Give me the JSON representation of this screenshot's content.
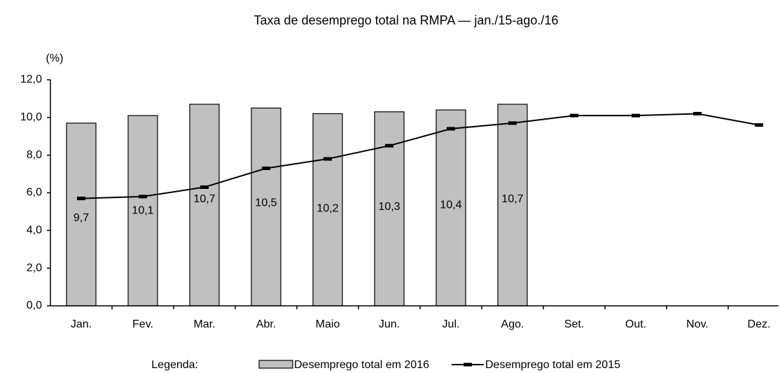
{
  "chart_data": {
    "type": "bar-line",
    "title": "Taxa de desemprego total na RMPA — jan./15-ago./16",
    "y_label": "(%)",
    "legend_title": "Legenda:",
    "categories": [
      "Jan.",
      "Fev.",
      "Mar.",
      "Abr.",
      "Maio",
      "Jun.",
      "Jul.",
      "Ago.",
      "Set.",
      "Out.",
      "Nov.",
      "Dez."
    ],
    "series": [
      {
        "name": "Desemprego total em 2016",
        "type": "bar",
        "color": "#c0c0c0",
        "values": [
          9.7,
          10.1,
          10.7,
          10.5,
          10.2,
          10.3,
          10.4,
          10.7,
          null,
          null,
          null,
          null
        ],
        "value_labels": [
          "9,7",
          "10,1",
          "10,7",
          "10,5",
          "10,2",
          "10,3",
          "10,4",
          "10,7",
          null,
          null,
          null,
          null
        ]
      },
      {
        "name": "Desemprego total em 2015",
        "type": "line",
        "color": "#000000",
        "values": [
          5.7,
          5.8,
          6.3,
          7.3,
          7.8,
          8.5,
          9.4,
          9.7,
          10.1,
          10.1,
          10.2,
          9.6
        ]
      }
    ],
    "ylim": [
      0,
      12
    ],
    "yticks": [
      {
        "value": 0,
        "label": "0,0"
      },
      {
        "value": 2,
        "label": "2,0"
      },
      {
        "value": 4,
        "label": "4,0"
      },
      {
        "value": 6,
        "label": "6,0"
      },
      {
        "value": 8,
        "label": "8,0"
      },
      {
        "value": 10,
        "label": "10,0"
      },
      {
        "value": 12,
        "label": "12,0"
      }
    ]
  }
}
